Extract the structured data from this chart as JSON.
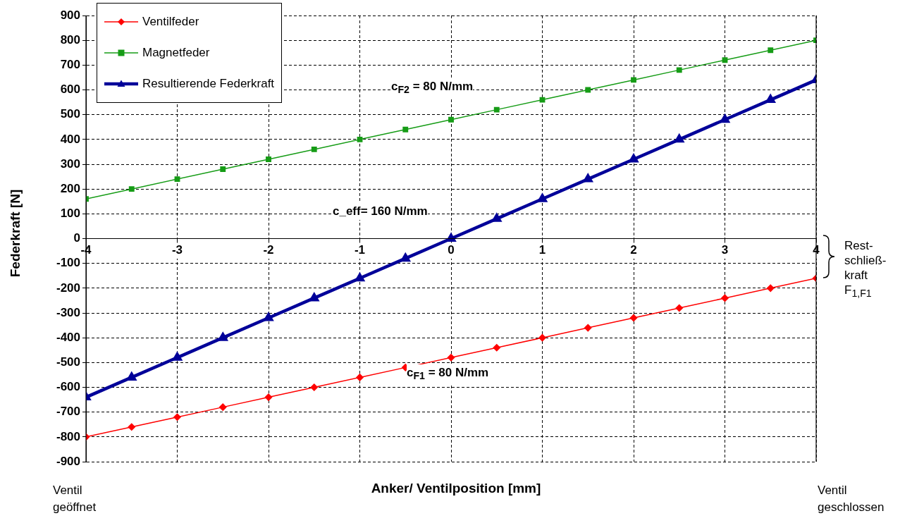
{
  "chart_data": {
    "type": "line",
    "xlabel": "Anker/ Ventilposition [mm]",
    "ylabel": "Federkraft [N]",
    "x": [
      -4,
      -3.5,
      -3,
      -2.5,
      -2,
      -1.5,
      -1,
      -0.5,
      0,
      0.5,
      1,
      1.5,
      2,
      2.5,
      3,
      3.5,
      4
    ],
    "series": [
      {
        "name": "Ventilfeder",
        "color": "#ff0000",
        "marker": "diamond",
        "values": [
          -800,
          -760,
          -720,
          -680,
          -640,
          -600,
          -560,
          -520,
          -480,
          -440,
          -400,
          -360,
          -320,
          -280,
          -240,
          -200,
          -160
        ]
      },
      {
        "name": "Magnetfeder",
        "color": "#169c16",
        "marker": "square",
        "values": [
          160,
          200,
          240,
          280,
          320,
          360,
          400,
          440,
          480,
          520,
          560,
          600,
          640,
          680,
          720,
          760,
          800
        ]
      },
      {
        "name": "Resultierende Federkraft",
        "color": "#000099",
        "marker": "triangle",
        "values": [
          -640,
          -560,
          -480,
          -400,
          -320,
          -240,
          -160,
          -80,
          0,
          80,
          160,
          240,
          320,
          400,
          480,
          560,
          640
        ]
      }
    ],
    "xlim": [
      -4,
      4
    ],
    "xticks": [
      -4,
      -3,
      -2,
      -1,
      0,
      1,
      2,
      3,
      4
    ],
    "ylim": [
      -900,
      900
    ],
    "yticks": [
      -900,
      -800,
      -700,
      -600,
      -500,
      -400,
      -300,
      -200,
      -100,
      0,
      100,
      200,
      300,
      400,
      500,
      600,
      700,
      800,
      900
    ],
    "grid": true,
    "legend": "top left",
    "line_style": "solid",
    "annotations": [
      "c$_{F2}$ = 80 N/mm",
      "c_eff= 160 N/mm",
      "c$_{F1}$ = 80 N/mm",
      "Rest-\nschließ-\nkraft\nF$_{1,F1}$",
      "Ventil\ngeöffnet",
      "Ventil\ngeschlossen"
    ]
  }
}
